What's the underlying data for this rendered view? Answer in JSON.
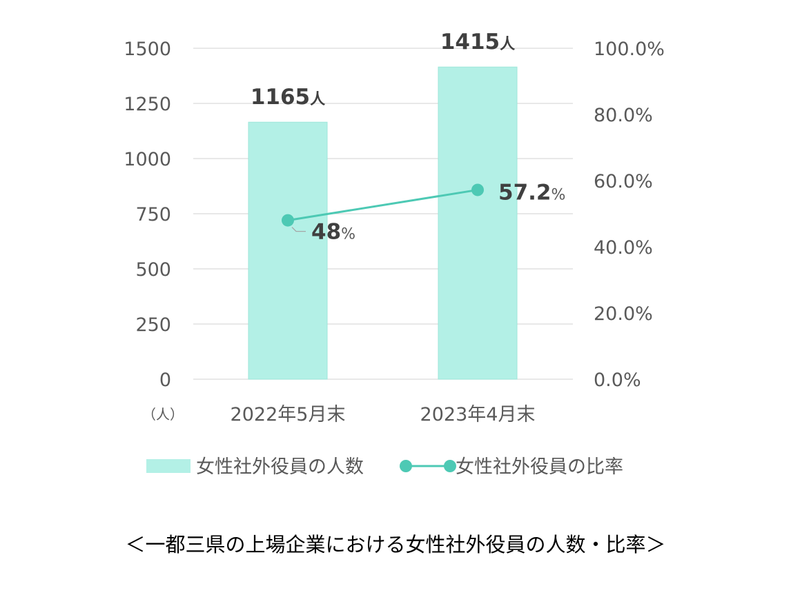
{
  "chart_data": {
    "type": "bar",
    "categories": [
      "2022年5月末",
      "2023年4月末"
    ],
    "series": [
      {
        "name": "女性社外役員の人数",
        "kind": "bar",
        "axis": "left",
        "values": [
          1165,
          1415
        ],
        "labels": [
          "1165",
          "1415"
        ],
        "label_unit": "人",
        "color": "#b3f0e6"
      },
      {
        "name": "女性社外役員の比率",
        "kind": "line",
        "axis": "right",
        "values": [
          48.0,
          57.2
        ],
        "labels": [
          "48",
          "57.2"
        ],
        "label_unit": "%",
        "color": "#4dc9b4"
      }
    ],
    "y_left": {
      "lim": [
        0,
        1500
      ],
      "ticks": [
        0,
        250,
        500,
        750,
        1000,
        1250,
        1500
      ],
      "tick_labels": [
        "0",
        "250",
        "500",
        "750",
        "1000",
        "1250",
        "1500"
      ],
      "unit_label": "（人）"
    },
    "y_right": {
      "lim": [
        0,
        100
      ],
      "ticks": [
        0,
        20,
        40,
        60,
        80,
        100
      ],
      "tick_labels": [
        "0.0%",
        "20.0%",
        "40.0%",
        "60.0%",
        "80.0%",
        "100.0%"
      ]
    },
    "grid": true,
    "legend_position": "bottom",
    "caption": "＜一都三県の上場企業における女性社外役員の人数・比率＞"
  }
}
